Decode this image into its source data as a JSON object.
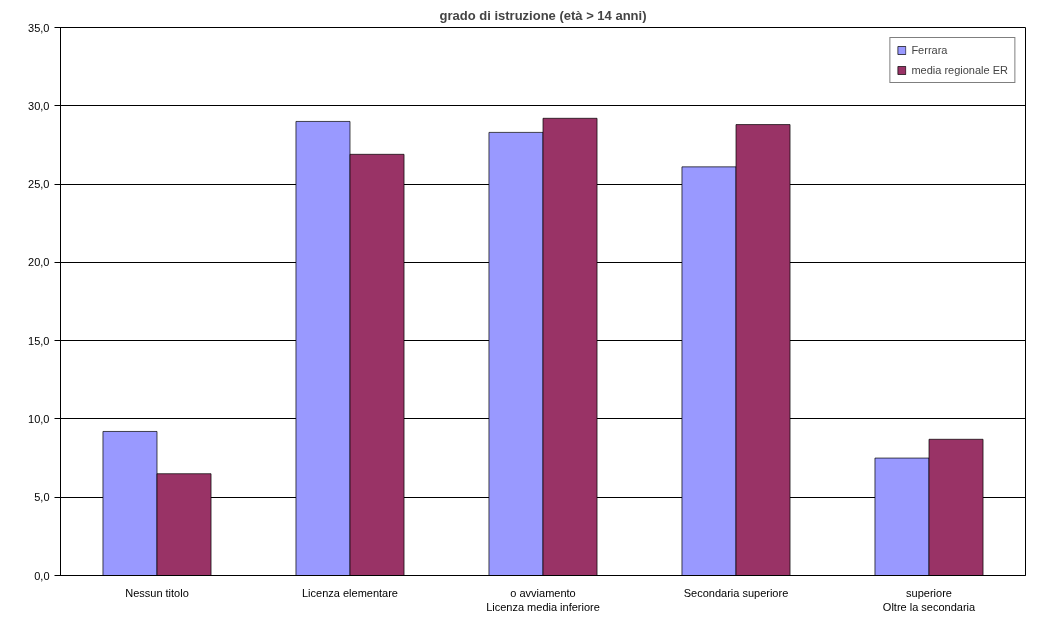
{
  "chart_data": {
    "type": "bar",
    "title": "grado di istruzione (età > 14 anni)",
    "categories": [
      "Nessun titolo",
      "Licenza elementare",
      "o avviamento\nLicenza media inferiore",
      "Secondaria superiore",
      "superiore\nOltre la secondaria"
    ],
    "series": [
      {
        "name": "Ferrara",
        "color": "#9999ff",
        "values": [
          9.2,
          29.0,
          28.3,
          26.1,
          7.5
        ]
      },
      {
        "name": "media regionale ER",
        "color": "#993366",
        "values": [
          6.5,
          26.9,
          29.2,
          28.8,
          8.7
        ]
      }
    ],
    "ylim": [
      0,
      35
    ],
    "yticks": [
      {
        "value": 0,
        "label": "0,0"
      },
      {
        "value": 5,
        "label": "5,0"
      },
      {
        "value": 10,
        "label": "10,0"
      },
      {
        "value": 15,
        "label": "15,0"
      },
      {
        "value": 20,
        "label": "20,0"
      },
      {
        "value": 25,
        "label": "25,0"
      },
      {
        "value": 30,
        "label": "30,0"
      },
      {
        "value": 35,
        "label": "35,0"
      }
    ],
    "grid": "y",
    "legend": "top right"
  }
}
